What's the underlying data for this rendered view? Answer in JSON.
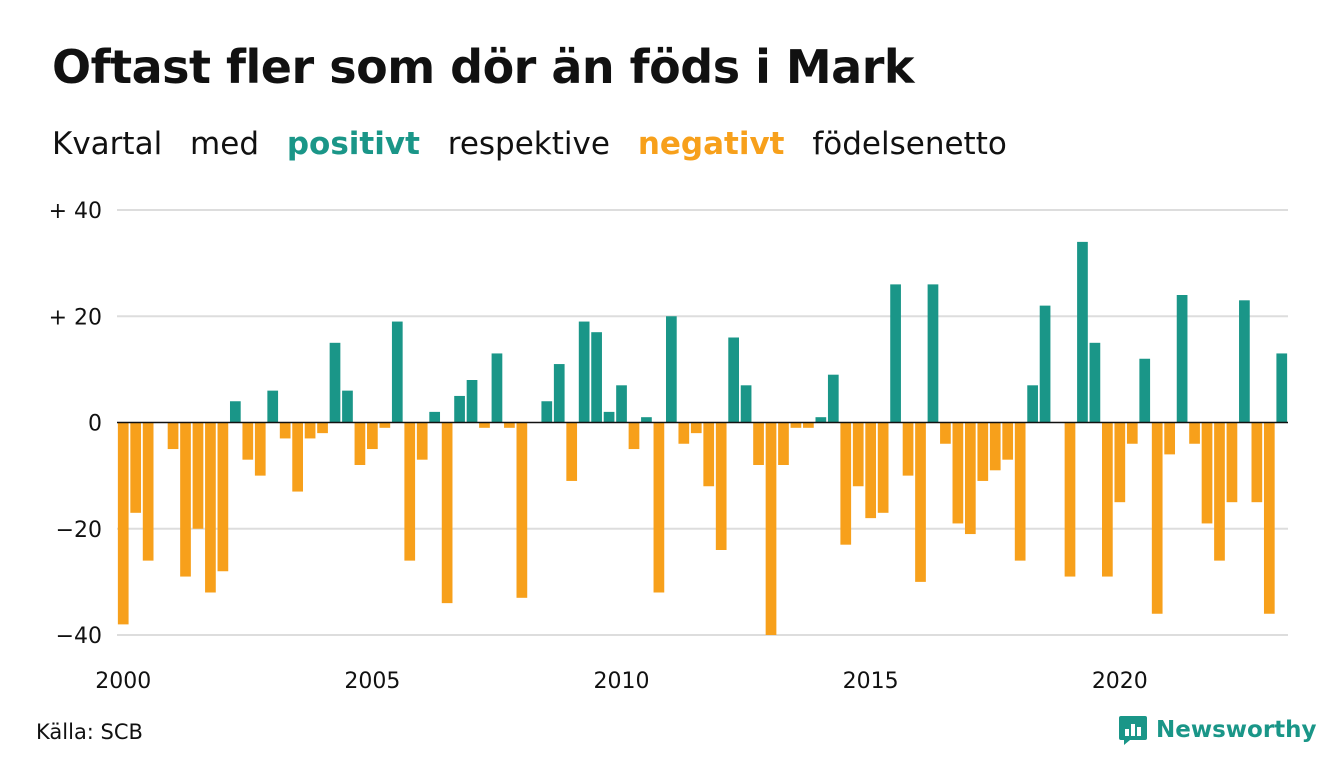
{
  "title": "Oftast fler som dör än föds i Mark",
  "subtitle": {
    "part1": "Kvartal",
    "part2": "med",
    "positive_word": "positivt",
    "part3": "respektive",
    "negative_word": "negativt",
    "part4": "födelsenetto"
  },
  "colors": {
    "positive": "#1a9688",
    "negative": "#f7a01b",
    "grid": "#dddddd",
    "zero_line": "#111111"
  },
  "source": "Källa: SCB",
  "brand": {
    "name": "Newsworthy",
    "icon": "chart-bubble-icon"
  },
  "chart_data": {
    "type": "bar",
    "title": "Oftast fler som dör än föds i Mark",
    "subtitle": "Kvartal med positivt respektive negativt födelsenetto",
    "xlabel": "",
    "ylabel": "",
    "ylim": [
      -40,
      40
    ],
    "grid": true,
    "yticks": [
      {
        "value": 40,
        "label": "+ 40"
      },
      {
        "value": 20,
        "label": "+ 20"
      },
      {
        "value": 0,
        "label": "0"
      },
      {
        "value": -20,
        "label": "−20"
      },
      {
        "value": -40,
        "label": "−40"
      }
    ],
    "xticks": [
      {
        "index": 0,
        "label": "2000"
      },
      {
        "index": 20,
        "label": "2005"
      },
      {
        "index": 40,
        "label": "2010"
      },
      {
        "index": 60,
        "label": "2015"
      },
      {
        "index": 80,
        "label": "2020"
      }
    ],
    "start_year": 2000,
    "frequency": "quarter",
    "values": [
      -38,
      -17,
      -26,
      0,
      -5,
      -29,
      -20,
      -32,
      -28,
      4,
      -7,
      -10,
      6,
      -3,
      -13,
      -3,
      -2,
      15,
      6,
      -8,
      -5,
      -1,
      19,
      -26,
      -7,
      2,
      -34,
      5,
      8,
      -1,
      13,
      -1,
      -33,
      0,
      4,
      11,
      -11,
      19,
      17,
      2,
      7,
      -5,
      1,
      -32,
      20,
      -4,
      -2,
      -12,
      -24,
      16,
      7,
      -8,
      -40,
      -8,
      -1,
      -1,
      1,
      9,
      -23,
      -12,
      -18,
      -17,
      26,
      -10,
      -30,
      26,
      -4,
      -19,
      -21,
      -11,
      -9,
      -7,
      -26,
      7,
      22,
      0,
      -29,
      34,
      15,
      -29,
      -15,
      -4,
      12,
      -36,
      -6,
      24,
      -4,
      -19,
      -26,
      -15,
      23,
      -15,
      -36,
      13
    ]
  }
}
